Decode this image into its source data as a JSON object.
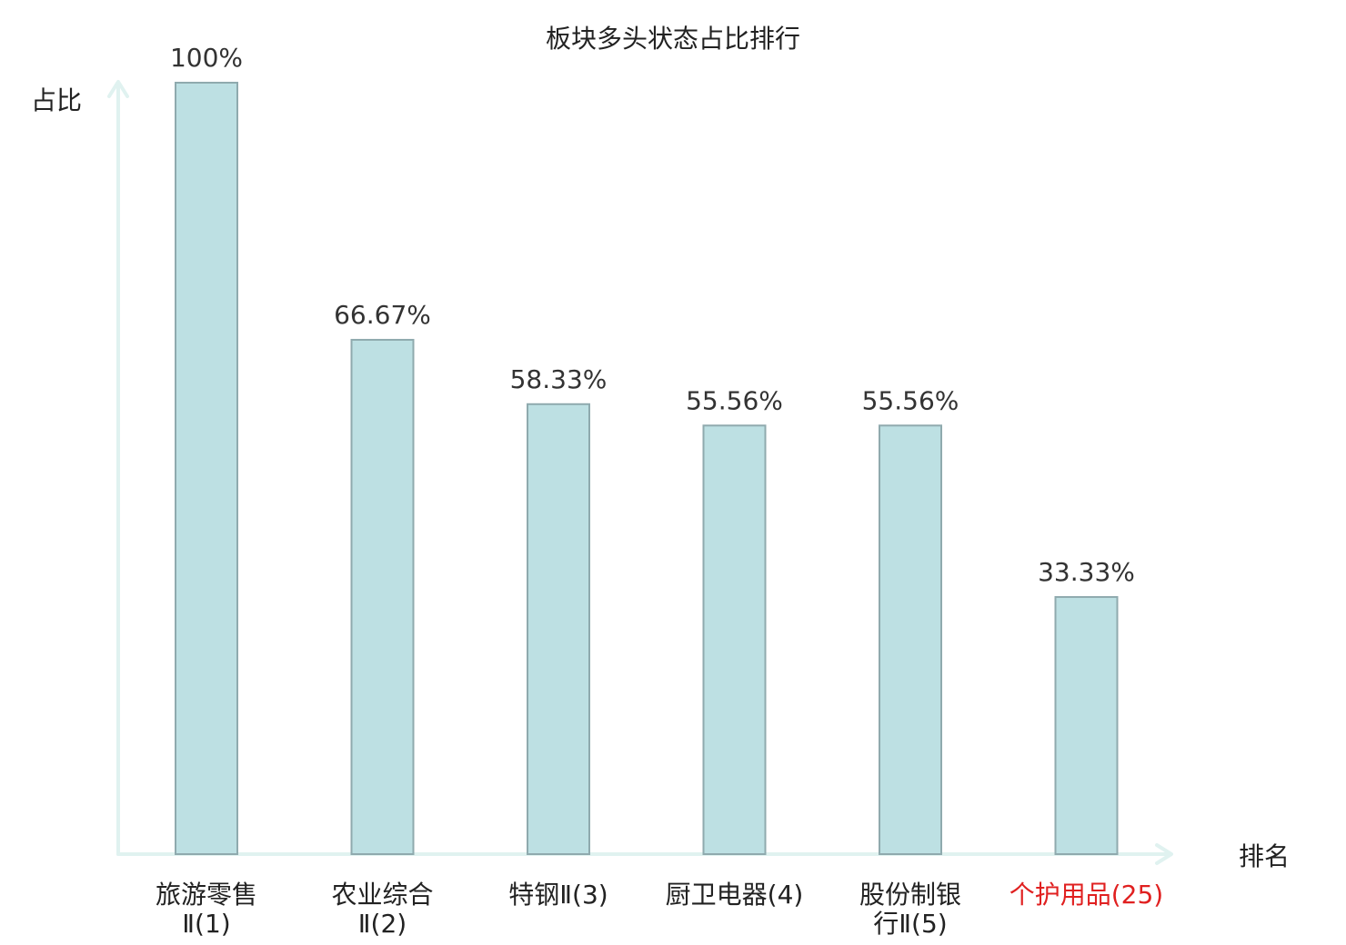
{
  "chart_data": {
    "type": "bar",
    "title": "板块多头状态占比排行",
    "xlabel": "排名",
    "ylabel": "占比",
    "categories": [
      [
        "旅游零售",
        "Ⅱ(1)"
      ],
      [
        "农业综合",
        "Ⅱ(2)"
      ],
      [
        "特钢Ⅱ(3)"
      ],
      [
        "厨卫电器(4)"
      ],
      [
        "股份制银",
        "行Ⅱ(5)"
      ],
      [
        "个护用品(25)"
      ]
    ],
    "values": [
      100,
      66.67,
      58.33,
      55.56,
      55.56,
      33.33
    ],
    "value_labels": [
      "100%",
      "66.67%",
      "58.33%",
      "55.56%",
      "55.56%",
      "33.33%"
    ],
    "ylim": [
      0,
      100
    ],
    "grid": false,
    "colors": {
      "bar_fill": "#bde0e3",
      "bar_stroke": "#8faaae",
      "axis": "#e0f2f0",
      "highlight_label": "#e02020",
      "default_label": "#222222"
    },
    "highlight_index": 5
  }
}
